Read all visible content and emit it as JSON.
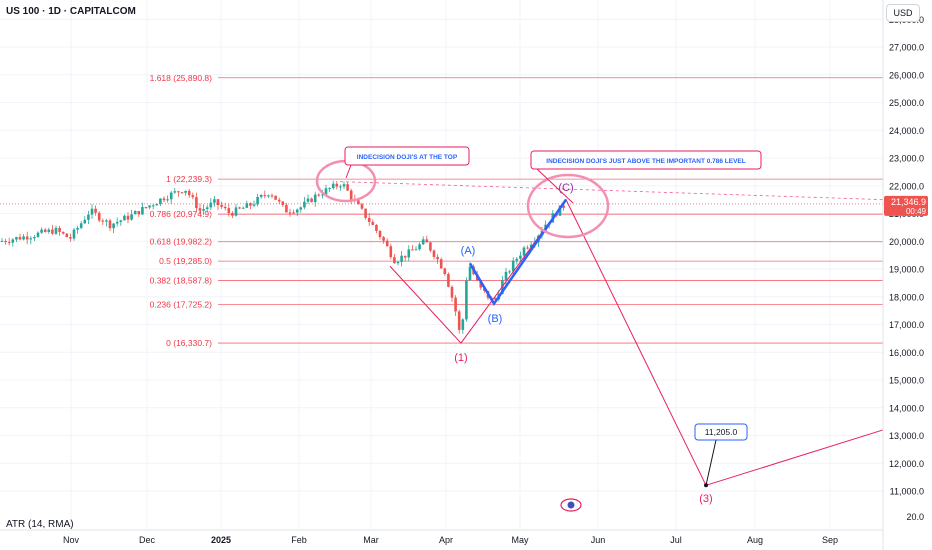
{
  "header": {
    "title": "US 100 · 1D · CAPITALCOM",
    "currency": "USD"
  },
  "indicator": {
    "label": "ATR (14, RMA)",
    "value": "20.0"
  },
  "colors": {
    "up": "#26a69a",
    "down": "#ef5350",
    "fib": "#f23645",
    "wave_blue": "#2962ff",
    "wave_red": "#e91e63",
    "circle": "#f48fb1",
    "axis_text": "#131722",
    "grid": "#f0f3fa"
  },
  "chart_data": {
    "type": "candlestick",
    "instrument": "US 100",
    "timeframe": "1D",
    "x_ticks": [
      "Nov",
      "Dec",
      "2025",
      "Feb",
      "Mar",
      "Apr",
      "May",
      "Jun",
      "Jul",
      "Aug",
      "Sep"
    ],
    "y_ticks": [
      "11,000.0",
      "12,000.0",
      "13,000.0",
      "14,000.0",
      "15,000.0",
      "16,000.0",
      "17,000.0",
      "18,000.0",
      "19,000.0",
      "20,000.0",
      "21,000.0",
      "22,000.0",
      "23,000.0",
      "24,000.0",
      "25,000.0",
      "26,000.0",
      "27,000.0",
      "28,000.0"
    ],
    "ylim": [
      10700,
      28400
    ],
    "last_price": {
      "value": 21346.9,
      "label": "21,346.9",
      "countdown": "00:49"
    },
    "fib_levels": [
      {
        "label": "1.618 (25,890.8)",
        "value": 25890.8
      },
      {
        "label": "1 (22,239.3)",
        "value": 22239.3
      },
      {
        "label": "0.786 (20,974.9)",
        "value": 20974.9
      },
      {
        "label": "0.618 (19,982.2)",
        "value": 19982.2
      },
      {
        "label": "0.5 (19,285.0)",
        "value": 19285.0
      },
      {
        "label": "0.382 (18,587.8)",
        "value": 18587.8
      },
      {
        "label": "0.236 (17,725.2)",
        "value": 17725.2
      },
      {
        "label": "0 (16,330.7)",
        "value": 16330.7
      }
    ],
    "waves": [
      {
        "label": "(1)",
        "value": 16330.7
      },
      {
        "label": "(A)",
        "value": 19200
      },
      {
        "label": "(B)",
        "value": 17750
      },
      {
        "label": "(C)",
        "value": 21500
      },
      {
        "label": "(3)",
        "value": 11205.0
      }
    ],
    "target_label": "11,205.0",
    "annotations": [
      "INDECISION DOJI'S AT THE TOP",
      "INDECISION DOJI'S JUST ABOVE THE IMPORTANT 0.786 LEVEL"
    ]
  }
}
